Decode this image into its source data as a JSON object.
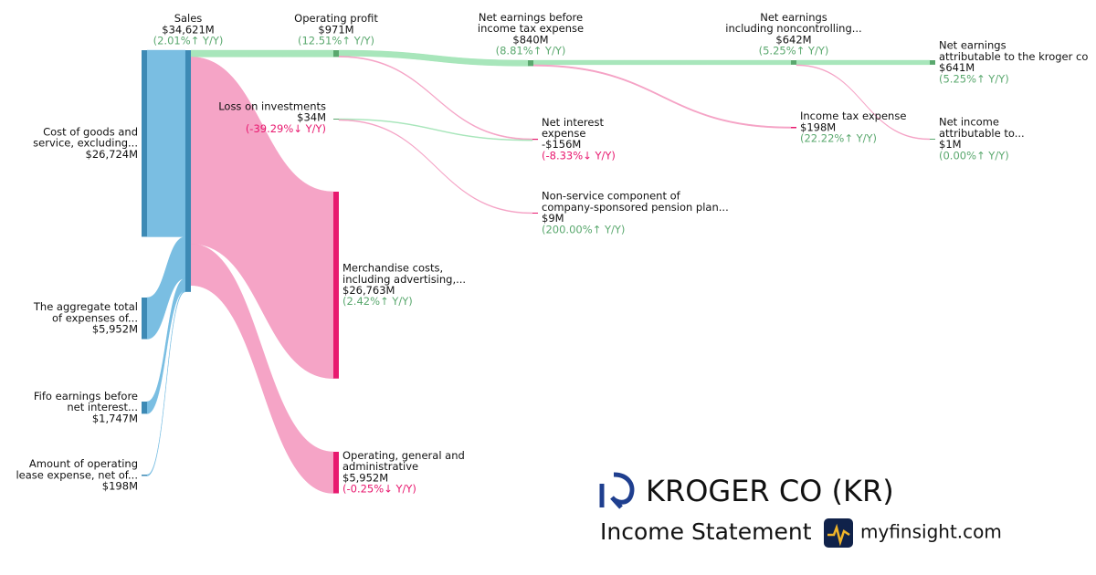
{
  "chart_data": {
    "type": "sankey",
    "nodes": [
      {
        "label": [
          "Sales"
        ],
        "value": 34621,
        "value_label": "$34,621M",
        "change": 2.01,
        "change_label": "(2.01%↑ Y/Y)",
        "color": "#3d8ab5"
      },
      {
        "label": [
          "Cost of goods and",
          "service, excluding..."
        ],
        "value": 26724,
        "value_label": "$26,724M",
        "color": "#3d8ab5"
      },
      {
        "label": [
          "The aggregate total",
          "of expenses of..."
        ],
        "value": 5952,
        "value_label": "$5,952M",
        "color": "#3d8ab5"
      },
      {
        "label": [
          "Fifo earnings before",
          "net interest..."
        ],
        "value": 1747,
        "value_label": "$1,747M",
        "color": "#3d8ab5"
      },
      {
        "label": [
          "Amount of operating",
          "lease expense, net of..."
        ],
        "value": 198,
        "value_label": "$198M",
        "color": "#3d8ab5"
      },
      {
        "label": [
          "Operating profit"
        ],
        "value": 971,
        "value_label": "$971M",
        "change": 12.51,
        "change_label": "(12.51%↑ Y/Y)",
        "color": "#5aa86e"
      },
      {
        "label": [
          "Loss on investments"
        ],
        "value": 34,
        "value_label": "$34M",
        "change": -39.29,
        "change_label": "(-39.29%↓ Y/Y)",
        "color": "#5aa86e"
      },
      {
        "label": [
          "Merchandise costs,",
          "including advertising,..."
        ],
        "value": 26763,
        "value_label": "$26,763M",
        "change": 2.42,
        "change_label": "(2.42%↑ Y/Y)",
        "color": "#e8196f"
      },
      {
        "label": [
          "Operating, general and",
          "administrative"
        ],
        "value": 5952,
        "value_label": "$5,952M",
        "change": -0.25,
        "change_label": "(-0.25%↓ Y/Y)",
        "color": "#e8196f"
      },
      {
        "label": [
          "Net earnings before",
          "income tax expense"
        ],
        "value": 840,
        "value_label": "$840M",
        "change": 8.81,
        "change_label": "(8.81%↑ Y/Y)",
        "color": "#5aa86e"
      },
      {
        "label": [
          "Net interest",
          "expense"
        ],
        "value": -156,
        "value_label": "-$156M",
        "change": -8.33,
        "change_label": "(-8.33%↓ Y/Y)",
        "color": "#e8196f"
      },
      {
        "label": [
          "Non-service component of",
          "company-sponsored pension plan..."
        ],
        "value": 9,
        "value_label": "$9M",
        "change": 200.0,
        "change_label": "(200.00%↑ Y/Y)",
        "color": "#e8196f"
      },
      {
        "label": [
          "Net earnings",
          "including noncontrolling..."
        ],
        "value": 642,
        "value_label": "$642M",
        "change": 5.25,
        "change_label": "(5.25%↑ Y/Y)",
        "color": "#5aa86e"
      },
      {
        "label": [
          "Income tax expense"
        ],
        "value": 198,
        "value_label": "$198M",
        "change": 22.22,
        "change_label": "(22.22%↑ Y/Y)",
        "color": "#e8196f"
      },
      {
        "label": [
          "Net earnings",
          "attributable to the kroger co"
        ],
        "value": 641,
        "value_label": "$641M",
        "change": 5.25,
        "change_label": "(5.25%↑ Y/Y)",
        "color": "#5aa86e"
      },
      {
        "label": [
          "Net income",
          "attributable to..."
        ],
        "value": 1,
        "value_label": "$1M",
        "change": 0.0,
        "change_label": "(0.00%↑ Y/Y)",
        "color": "#5aa86e"
      }
    ],
    "links": [
      {
        "source": 1,
        "target": 0,
        "color": "#6cb7df"
      },
      {
        "source": 2,
        "target": 0,
        "color": "#6cb7df"
      },
      {
        "source": 3,
        "target": 0,
        "color": "#6cb7df"
      },
      {
        "source": 4,
        "target": 0,
        "color": "#6cb7df"
      },
      {
        "source": 0,
        "target": 5,
        "color": "#9fe3b4"
      },
      {
        "source": 0,
        "target": 7,
        "color": "#f49ac0"
      },
      {
        "source": 0,
        "target": 8,
        "color": "#f49ac0"
      },
      {
        "source": 5,
        "target": 9,
        "color": "#9fe3b4"
      },
      {
        "source": 5,
        "target": 10,
        "color": "#f49ac0"
      },
      {
        "source": 6,
        "target": 10,
        "color": "#9fe3b4"
      },
      {
        "source": 6,
        "target": 11,
        "color": "#f49ac0"
      },
      {
        "source": 9,
        "target": 12,
        "color": "#9fe3b4"
      },
      {
        "source": 9,
        "target": 13,
        "color": "#f49ac0"
      },
      {
        "source": 12,
        "target": 14,
        "color": "#9fe3b4"
      },
      {
        "source": 12,
        "target": 15,
        "color": "#f49ac0"
      }
    ],
    "positive_color": "#5aa86e",
    "negative_color": "#e8196f"
  },
  "company": "KROGER CO (KR)",
  "subtitle": "Income Statement",
  "brand": "myfinsight.com"
}
